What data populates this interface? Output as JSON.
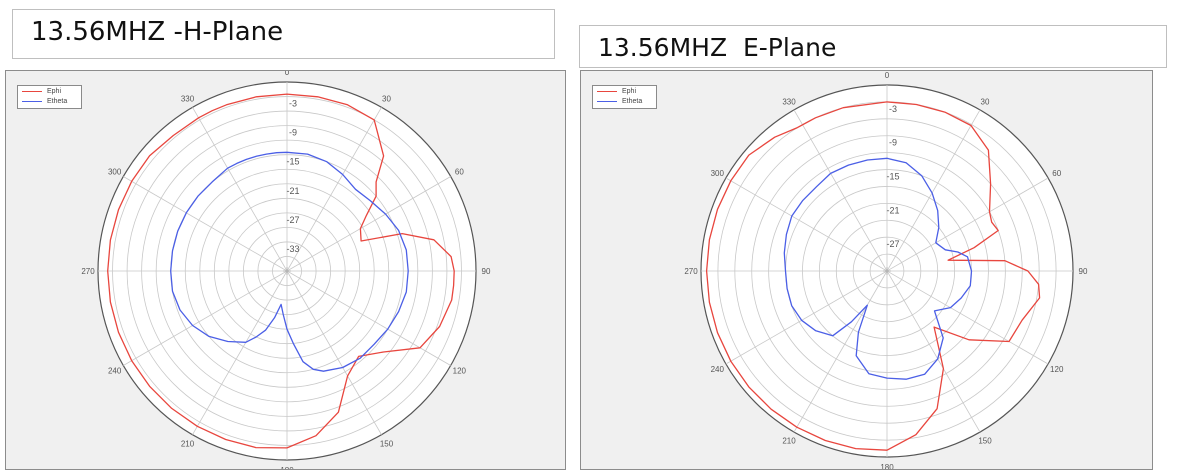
{
  "titles": {
    "left": "13.56MHZ -H-Plane",
    "right": "13.56MHZ  E-Plane"
  },
  "colors": {
    "ephi": "#e8463e",
    "etheta": "#4b5fe6",
    "grid": "#c8c8c8",
    "panel_bg": "#f0f0f0"
  },
  "chart_data": [
    {
      "type": "polar-line",
      "title": "13.56MHZ -H-Plane",
      "angle_ticks": [
        "0",
        "30",
        "60",
        "90",
        "120",
        "150",
        "180",
        "210",
        "240",
        "270",
        "300",
        "330"
      ],
      "radial_ticks": [
        "-3",
        "-9",
        "-15",
        "-21",
        "-27",
        "-33"
      ],
      "rlim": [
        -39,
        0
      ],
      "grid": true,
      "legend_position": "top-left",
      "legend": [
        "Ephi",
        "Etheta"
      ],
      "series": [
        {
          "name": "Ephi",
          "angles": [
            335,
            340,
            350,
            0,
            10,
            20,
            30,
            40,
            45,
            50,
            55,
            60,
            68,
            72,
            78,
            85,
            90,
            95,
            100,
            110,
            120,
            130,
            140,
            150,
            160,
            170,
            180,
            190,
            200,
            210,
            220,
            230,
            240,
            250,
            260,
            270,
            280,
            290,
            300,
            310,
            320,
            330,
            335
          ],
          "values": [
            -2.5,
            -2.5,
            -2.5,
            -2.5,
            -2.5,
            -2.5,
            -3,
            -8,
            -13,
            -15,
            -19,
            -21.5,
            -22.5,
            -14,
            -8,
            -5,
            -4.5,
            -4.5,
            -4.5,
            -5.5,
            -7.3,
            -13,
            -16,
            -14,
            -8,
            -4.5,
            -2.5,
            -2,
            -2,
            -2,
            -2,
            -2,
            -2,
            -2,
            -2,
            -2,
            -2,
            -2,
            -2,
            -2,
            -2.5,
            -2.5,
            -2.5
          ]
        },
        {
          "name": "Etheta",
          "angles": [
            330,
            335,
            340,
            345,
            350,
            355,
            0,
            10,
            20,
            30,
            40,
            50,
            60,
            70,
            80,
            90,
            100,
            110,
            120,
            130,
            140,
            150,
            160,
            165,
            170,
            175,
            180,
            185,
            190,
            195,
            200,
            205,
            210,
            220,
            230,
            240,
            250,
            260,
            270,
            280,
            290,
            300,
            310,
            320,
            330
          ],
          "values": [
            -14.5,
            -14.5,
            -14.5,
            -14.5,
            -14.5,
            -14.5,
            -14.5,
            -14.5,
            -15,
            -16,
            -17,
            -16.5,
            -15.5,
            -14.5,
            -14,
            -14,
            -14,
            -14.5,
            -15,
            -15.5,
            -15.5,
            -16,
            -17,
            -18,
            -20,
            -24,
            -27,
            -30,
            -32,
            -29,
            -26,
            -24,
            -22,
            -20,
            -18,
            -16.5,
            -15.5,
            -15,
            -15,
            -15,
            -15,
            -15,
            -15,
            -15,
            -14.5
          ]
        }
      ]
    },
    {
      "type": "polar-line",
      "title": "13.56MHZ  E-Plane",
      "angle_ticks": [
        "0",
        "30",
        "60",
        "90",
        "120",
        "150",
        "180",
        "210",
        "240",
        "270",
        "300",
        "330"
      ],
      "radial_ticks": [
        "-3",
        "-9",
        "-15",
        "-21",
        "-27"
      ],
      "rlim": [
        -33,
        0
      ],
      "grid": true,
      "legend_position": "top-left",
      "legend": [
        "Ephi",
        "Etheta"
      ],
      "series": [
        {
          "name": "Ephi",
          "angles": [
            328,
            335,
            345,
            0,
            10,
            20,
            30,
            40,
            50,
            60,
            65,
            70,
            75,
            80,
            85,
            90,
            95,
            100,
            110,
            120,
            130,
            140,
            150,
            160,
            170,
            180,
            190,
            200,
            210,
            220,
            230,
            240,
            250,
            260,
            270,
            280,
            290,
            300,
            310,
            320,
            328
          ],
          "values": [
            -3,
            -3,
            -3,
            -3,
            -3,
            -3,
            -3.2,
            -5,
            -9,
            -12,
            -12.5,
            -12,
            -17,
            -22,
            -12,
            -8,
            -6,
            -5.5,
            -7.5,
            -8,
            -14,
            -20,
            -13,
            -7,
            -3.5,
            -1.2,
            -1,
            -1,
            -1,
            -1,
            -1,
            -1,
            -1,
            -1,
            -1,
            -1,
            -1,
            -1,
            -1,
            -2,
            -3
          ]
        },
        {
          "name": "Etheta",
          "angles": [
            330,
            340,
            350,
            0,
            10,
            20,
            30,
            40,
            50,
            60,
            70,
            75,
            80,
            90,
            100,
            110,
            120,
            130,
            140,
            150,
            160,
            170,
            180,
            190,
            200,
            205,
            210,
            215,
            220,
            230,
            240,
            250,
            260,
            270,
            280,
            290,
            300,
            310,
            320,
            330
          ],
          "values": [
            -13,
            -13,
            -13,
            -13,
            -13.5,
            -15,
            -17,
            -19,
            -21,
            -23,
            -22,
            -20,
            -18.5,
            -18,
            -18,
            -19,
            -20,
            -22,
            -17.5,
            -15,
            -13.5,
            -13.5,
            -14,
            -14.5,
            -17,
            -21,
            -26,
            -22,
            -18,
            -16.5,
            -15.5,
            -15,
            -15,
            -15,
            -14.5,
            -14,
            -13.5,
            -13.5,
            -13.5,
            -13
          ]
        }
      ]
    }
  ]
}
